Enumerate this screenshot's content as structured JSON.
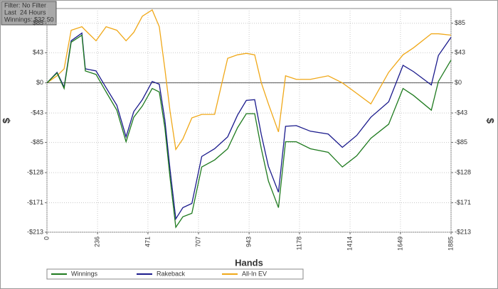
{
  "filter_box": [
    "Filter: No Filter",
    "Last  24 Hours",
    "Winnings: $32.50"
  ],
  "chart_data": {
    "type": "line",
    "x_label": "Hands",
    "y_label": "$",
    "y2_label": "$",
    "xlim": [
      0,
      1885
    ],
    "xticks": [
      0,
      236,
      471,
      707,
      943,
      1178,
      1414,
      1649,
      1885
    ],
    "ylim": [
      -213,
      106
    ],
    "yticks": [
      {
        "value": 85,
        "label": "$85"
      },
      {
        "value": 43,
        "label": "$43"
      },
      {
        "value": 0,
        "label": "$0"
      },
      {
        "value": -43,
        "label": "-$43"
      },
      {
        "value": -85,
        "label": "-$85"
      },
      {
        "value": -128,
        "label": "-$128"
      },
      {
        "value": -171,
        "label": "-$171"
      },
      {
        "value": -213,
        "label": "-$213"
      }
    ],
    "grid": true,
    "x": [
      0,
      47,
      80,
      113,
      163,
      179,
      229,
      276,
      326,
      369,
      405,
      445,
      491,
      524,
      550,
      574,
      601,
      634,
      676,
      722,
      782,
      843,
      889,
      930,
      969,
      1000,
      1033,
      1080,
      1113,
      1163,
      1229,
      1312,
      1378,
      1445,
      1511,
      1594,
      1661,
      1710,
      1793,
      1826,
      1885
    ],
    "series": [
      {
        "name": "Winnings",
        "color": "#1e7a1e",
        "values": [
          0,
          14,
          -8,
          58,
          68,
          17,
          12,
          -13,
          -39,
          -84,
          -49,
          -33,
          -8,
          -13,
          -64,
          -135,
          -206,
          -191,
          -186,
          -120,
          -110,
          -94,
          -64,
          -44,
          -44,
          -94,
          -140,
          -178,
          -84,
          -84,
          -94,
          -99,
          -120,
          -104,
          -79,
          -59,
          -8,
          -18,
          -39,
          2,
          32.5
        ]
      },
      {
        "name": "Rakeback",
        "color": "#1a1a8c",
        "values": [
          0,
          15,
          -6,
          60,
          71,
          20,
          17,
          -7,
          -32,
          -77,
          -41,
          -24,
          2,
          -2,
          -53,
          -123,
          -194,
          -178,
          -172,
          -105,
          -94,
          -77,
          -46,
          -25,
          -24,
          -74,
          -119,
          -156,
          -62,
          -61,
          -69,
          -73,
          -92,
          -75,
          -49,
          -27,
          25,
          16,
          -3,
          39,
          65
        ]
      },
      {
        "name": "All-In EV",
        "color": "#f0a818",
        "values": [
          0,
          10,
          20,
          75,
          80,
          75,
          60,
          80,
          75,
          60,
          72,
          95,
          104,
          80,
          20,
          -40,
          -95,
          -80,
          -50,
          -45,
          -45,
          35,
          40,
          42,
          40,
          0,
          -30,
          -70,
          10,
          5,
          5,
          10,
          0,
          -15,
          -30,
          15,
          40,
          50,
          70,
          70,
          68
        ]
      }
    ]
  }
}
